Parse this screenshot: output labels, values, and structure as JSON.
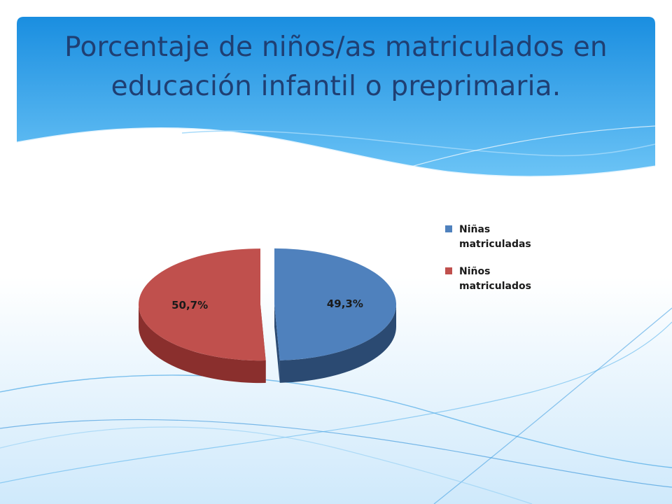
{
  "slide": {
    "title": "Porcentaje de niños/as matriculados en educación infantil o preprimaria."
  },
  "colors": {
    "header_top": "#1a8ee0",
    "header_bottom": "#6cc4f6",
    "title_text": "#1f3f73",
    "ninas": "#4f81bd",
    "ninos": "#c0504d"
  },
  "chart_data": {
    "type": "pie",
    "style": "3d-exploded",
    "title": "",
    "labels": [
      "Niñas matriculadas",
      "Niños matriculados"
    ],
    "values": [
      49.3,
      50.7
    ],
    "value_labels": [
      "49,3%",
      "50,7%"
    ],
    "legend_position": "right"
  }
}
